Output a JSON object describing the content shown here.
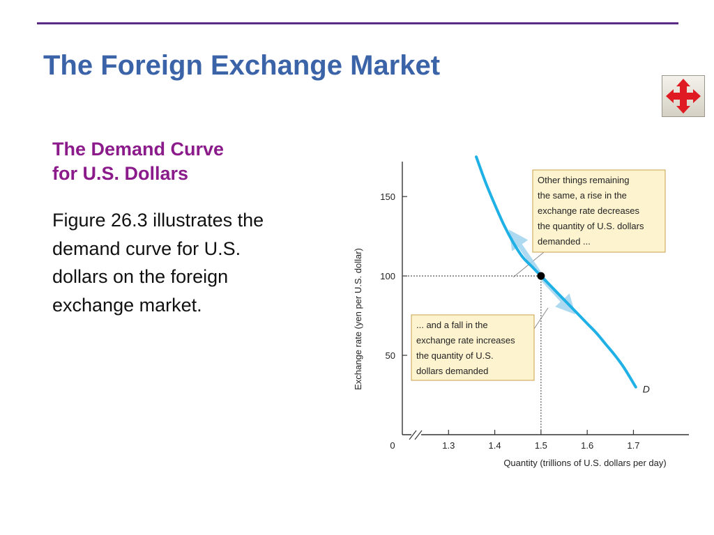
{
  "slide": {
    "title": "The Foreign Exchange Market",
    "subtitle_lines": [
      "The Demand Curve",
      "for U.S. Dollars"
    ],
    "body": "Figure 26.3 illustrates the demand curve for U.S. dollars on the foreign exchange market.",
    "nav_icon": "four-way-arrows-icon"
  },
  "colors": {
    "rule": "#5b2a86",
    "title": "#3b63a8",
    "subtitle": "#8b1a8b",
    "curve": "#1fb0e6",
    "arrow": "#9fd4ef",
    "callout_fill": "#fdf3cf",
    "callout_border": "#c9a24a",
    "nav_arrows": "#e01a22"
  },
  "chart_data": {
    "type": "line",
    "ylabel": "Exchange rate (yen per U.S. dollar)",
    "xlabel": "Quantity (trillions of U.S. dollars per day)",
    "x_origin_label": "0",
    "x_ticks": [
      1.3,
      1.4,
      1.5,
      1.6,
      1.7
    ],
    "x_tick_labels": [
      "1.3",
      "1.4",
      "1.5",
      "1.6",
      "1.7"
    ],
    "y_ticks": [
      50,
      100,
      150
    ],
    "y_tick_labels": [
      "50",
      "100",
      "150"
    ],
    "xlim": [
      1.2,
      1.82
    ],
    "ylim": [
      0,
      172
    ],
    "axis_break": true,
    "series": [
      {
        "name": "D",
        "x": [
          1.36,
          1.38,
          1.4,
          1.42,
          1.44,
          1.46,
          1.48,
          1.5,
          1.52,
          1.54,
          1.56,
          1.58,
          1.6,
          1.62,
          1.64,
          1.66,
          1.68,
          1.705
        ],
        "y": [
          175,
          159,
          145,
          132,
          121,
          112,
          106,
          100,
          94,
          88,
          82,
          76,
          70,
          64,
          57,
          50,
          42,
          30
        ]
      }
    ],
    "equilibrium": {
      "x": 1.5,
      "y": 100
    },
    "annotations": [
      {
        "text_lines": [
          "Other things remaining",
          "the same, a rise in the",
          "exchange rate decreases",
          "the quantity of U.S. dollars",
          "demanded ..."
        ]
      },
      {
        "text_lines": [
          "... and a fall in the",
          "exchange rate increases",
          "the quantity of U.S.",
          "dollars demanded"
        ]
      }
    ]
  }
}
